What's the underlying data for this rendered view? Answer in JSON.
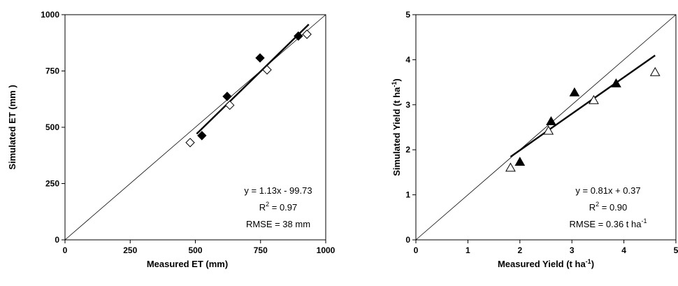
{
  "chart_data": [
    {
      "type": "scatter",
      "xlabel": "Measured ET   (mm)",
      "ylabel": "Simulated ET   (mm )",
      "xlim": [
        0,
        1000
      ],
      "ylim": [
        0,
        1000
      ],
      "xticks": [
        "0",
        "250",
        "500",
        "750",
        "1000"
      ],
      "yticks": [
        "0",
        "250",
        "500",
        "750",
        "1000"
      ],
      "grid": false,
      "series": [
        {
          "marker": "filled-diamond",
          "x": [
            525,
            622,
            748,
            895
          ],
          "y": [
            463,
            637,
            808,
            905
          ]
        },
        {
          "marker": "open-diamond",
          "x": [
            480,
            632,
            775,
            928
          ],
          "y": [
            432,
            598,
            755,
            913
          ]
        }
      ],
      "one_to_one_line": true,
      "fit_line": {
        "slope": 1.13,
        "intercept": -99.73,
        "x_range": [
          505,
          935
        ]
      },
      "annotations": [
        "y = 1.13x - 99.73",
        "R",
        "2",
        " = 0.97",
        "RMSE = 38 mm"
      ]
    },
    {
      "type": "scatter",
      "xlabel_parts": [
        "Measured Yield (t ha",
        "-1",
        ")"
      ],
      "ylabel_parts": [
        "Simulated Yield (t ha",
        "-1",
        ")"
      ],
      "xlim": [
        0,
        5
      ],
      "ylim": [
        0,
        5
      ],
      "xticks": [
        "0",
        "1",
        "2",
        "3",
        "4",
        "5"
      ],
      "yticks": [
        "0",
        "1",
        "2",
        "3",
        "4",
        "5"
      ],
      "grid": false,
      "series": [
        {
          "marker": "filled-triangle",
          "x": [
            2.0,
            2.6,
            3.05,
            3.85
          ],
          "y": [
            1.73,
            2.63,
            3.27,
            3.47
          ]
        },
        {
          "marker": "open-triangle",
          "x": [
            1.82,
            2.55,
            3.42,
            4.6
          ],
          "y": [
            1.6,
            2.42,
            3.1,
            3.72
          ]
        }
      ],
      "one_to_one_line": true,
      "fit_line": {
        "slope": 0.81,
        "intercept": 0.37,
        "x_range": [
          1.82,
          4.6
        ]
      },
      "annotations": [
        "y = 0.81x + 0.37",
        "R",
        "2",
        " = 0.90",
        "RMSE = 0.36 t ha",
        "-1"
      ]
    }
  ]
}
